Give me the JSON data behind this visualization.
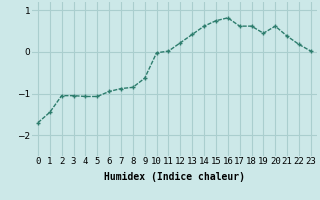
{
  "x": [
    0,
    1,
    2,
    3,
    4,
    5,
    6,
    7,
    8,
    9,
    10,
    11,
    12,
    13,
    14,
    15,
    16,
    17,
    18,
    19,
    20,
    21,
    22,
    23
  ],
  "y": [
    -1.7,
    -1.45,
    -1.05,
    -1.05,
    -1.07,
    -1.07,
    -0.95,
    -0.88,
    -0.85,
    -0.63,
    -0.02,
    0.02,
    0.22,
    0.42,
    0.62,
    0.75,
    0.82,
    0.62,
    0.62,
    0.45,
    0.62,
    0.38,
    0.18,
    0.02
  ],
  "line_color": "#2d7d6d",
  "marker": "+",
  "marker_size": 3,
  "marker_linewidth": 1.0,
  "background_color": "#cce8e8",
  "grid_color": "#aacece",
  "xlabel": "Humidex (Indice chaleur)",
  "xlabel_fontsize": 7,
  "tick_fontsize": 6.5,
  "ylim": [
    -2.5,
    1.2
  ],
  "yticks": [
    -2,
    -1,
    0,
    1
  ],
  "xlim": [
    -0.5,
    23.5
  ],
  "linewidth": 1.0
}
